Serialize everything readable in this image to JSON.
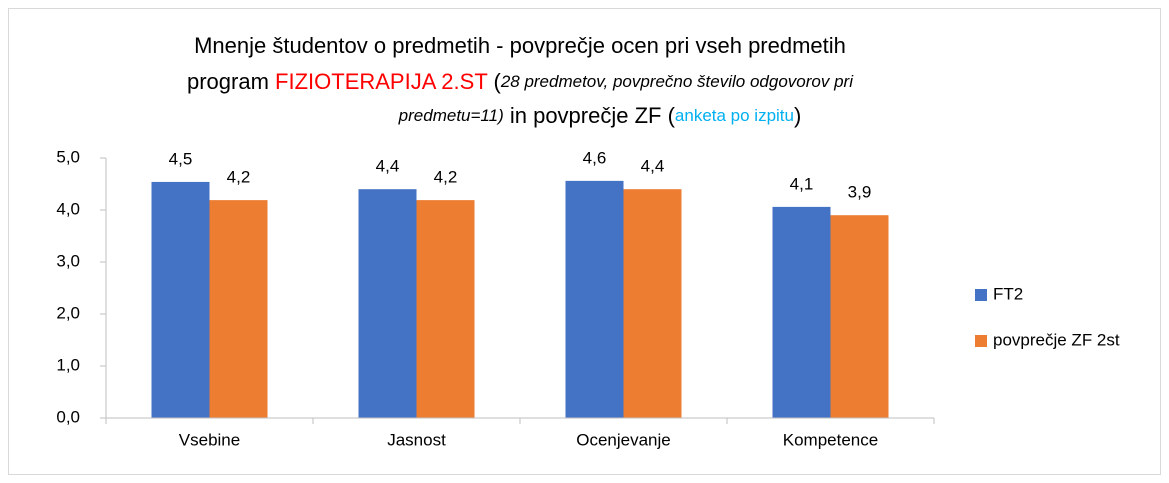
{
  "chart_data": {
    "type": "bar",
    "title": [
      [
        "Mnenje študentov o predmetih - povprečje ocen pri vseh predmetih"
      ],
      [
        "program ",
        "FIZIOTERAPIJA 2.ST",
        " (",
        "28 predmetov, povprečno število odgovorov pri"
      ],
      [
        "predmetu=11)",
        " in povprečje ZF (",
        "anketa po izpitu",
        ")"
      ]
    ],
    "categories": [
      "Vsebine",
      "Jasnost",
      "Ocenjevanje",
      "Kompetence"
    ],
    "series": [
      {
        "name": "FT2",
        "color": "#4472c4",
        "values": [
          4.54,
          4.4,
          4.56,
          4.06
        ],
        "value_labels": [
          "4,5",
          "4,4",
          "4,6",
          "4,1"
        ]
      },
      {
        "name": "povprečje ZF 2st",
        "color": "#ed7d31",
        "values": [
          4.19,
          4.19,
          4.4,
          3.9
        ],
        "value_labels": [
          "4,2",
          "4,2",
          "4,4",
          "3,9"
        ]
      }
    ],
    "ylim": [
      0,
      5
    ],
    "yticks": [
      {
        "value": 0,
        "label": "0,0"
      },
      {
        "value": 1,
        "label": "1,0"
      },
      {
        "value": 2,
        "label": "2,0"
      },
      {
        "value": 3,
        "label": "3,0"
      },
      {
        "value": 4,
        "label": "4,0"
      },
      {
        "value": 5,
        "label": "5,0"
      }
    ],
    "grid": false,
    "legend": "right"
  }
}
